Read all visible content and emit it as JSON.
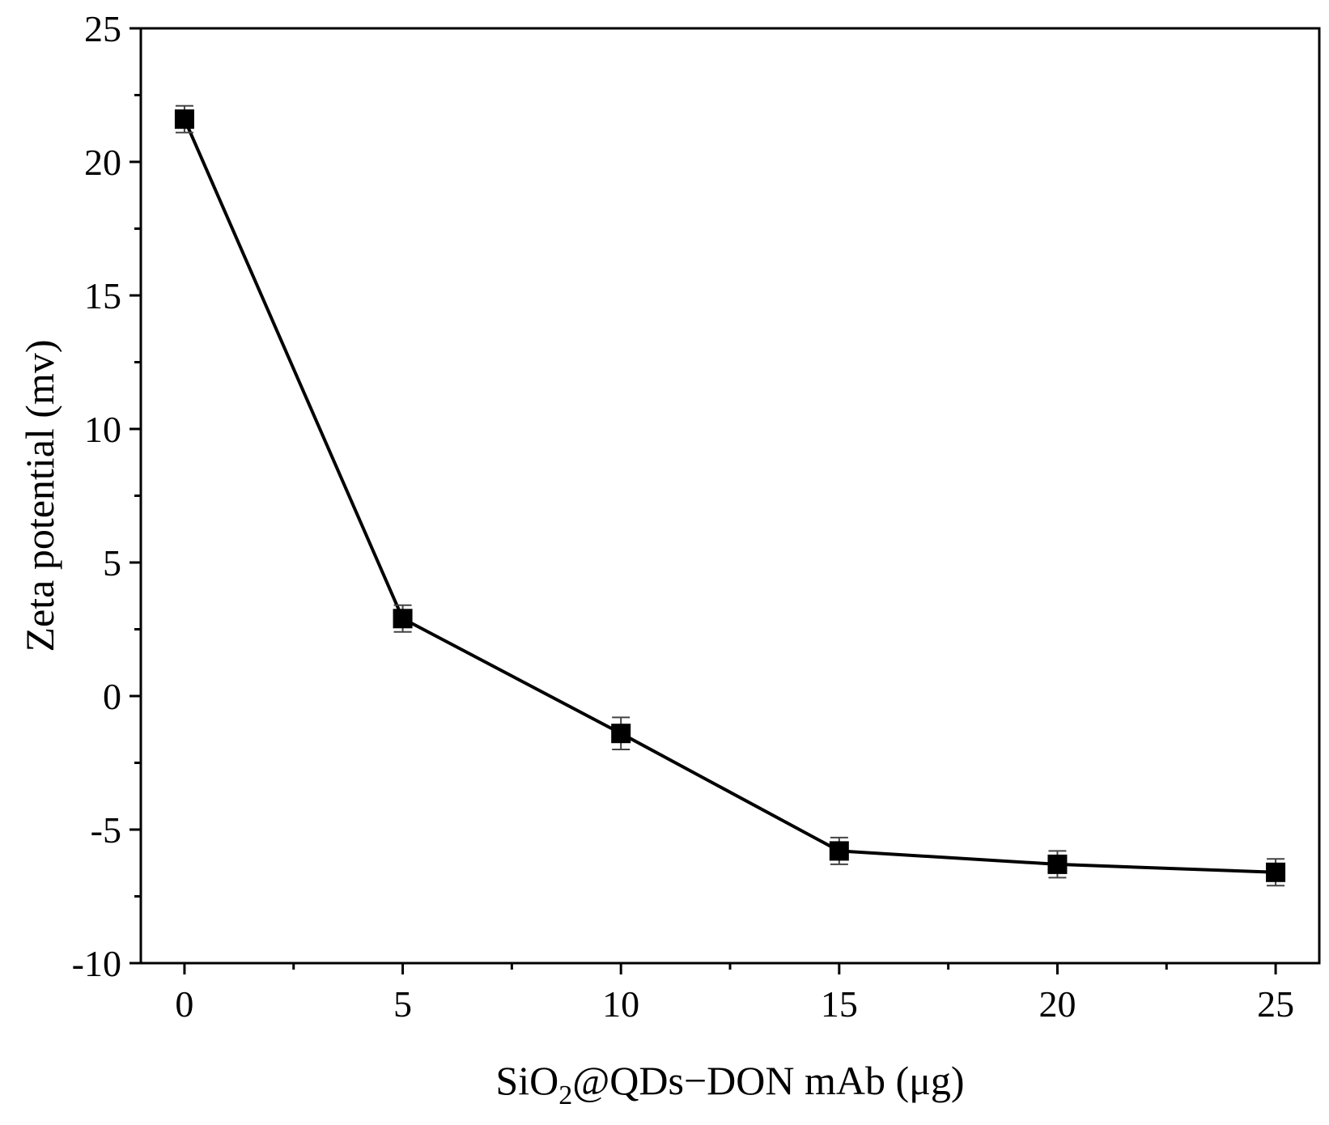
{
  "chart_data": {
    "type": "line",
    "title": "",
    "xlabel": "SiO2@QDs−DON mAb (μg)",
    "xlabel_parts": {
      "pre": "SiO",
      "sub": "2",
      "post": "@QDs−DON mAb (μg)"
    },
    "ylabel": "Zeta potential (mv)",
    "xlim": [
      -1,
      26
    ],
    "ylim": [
      -10,
      25
    ],
    "xticks": [
      0,
      5,
      10,
      15,
      20,
      25
    ],
    "yticks": [
      -10,
      -5,
      0,
      5,
      10,
      15,
      20,
      25
    ],
    "xtick_labels": [
      "0",
      "5",
      "10",
      "15",
      "20",
      "25"
    ],
    "ytick_labels": [
      "-10",
      "-5",
      "0",
      "5",
      "10",
      "15",
      "20",
      "25"
    ],
    "grid": false,
    "legend": "none",
    "series": [
      {
        "x": [
          0,
          5,
          10,
          15,
          20,
          25
        ],
        "y": [
          21.6,
          2.9,
          -1.4,
          -5.8,
          -6.3,
          -6.6
        ],
        "error": [
          0.5,
          0.5,
          0.6,
          0.5,
          0.5,
          0.5
        ],
        "marker": "square",
        "color": "#000000"
      }
    ]
  }
}
